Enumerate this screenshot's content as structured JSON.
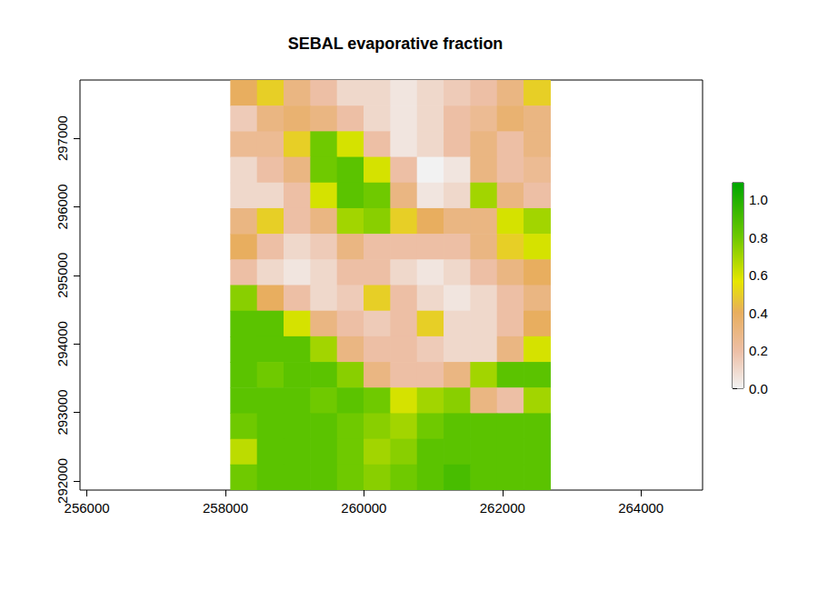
{
  "chart_data": {
    "type": "raster",
    "title": "SEBAL evaporative fraction",
    "xlim": [
      255900,
      264890
    ],
    "ylim": [
      291866,
      297850
    ],
    "xticks": [
      256000,
      258000,
      260000,
      262000,
      264000
    ],
    "yticks": [
      292000,
      293000,
      294000,
      295000,
      296000,
      297000
    ],
    "x_edges": [
      258070,
      258455,
      258840,
      259225,
      259610,
      259995,
      260380,
      260765,
      261150,
      261535,
      261920,
      262305,
      262690
    ],
    "y_edges": [
      297850,
      297476,
      297102,
      296728,
      296354,
      295980,
      295606,
      295232,
      294858,
      294484,
      294110,
      293736,
      293362,
      292988,
      292614,
      292240,
      291866
    ],
    "values": [
      [
        0.4,
        0.5,
        0.3,
        0.2,
        0.1,
        0.1,
        0.05,
        0.1,
        0.15,
        0.2,
        0.3,
        0.5
      ],
      [
        0.15,
        0.3,
        0.35,
        0.3,
        0.2,
        0.1,
        0.05,
        0.1,
        0.2,
        0.25,
        0.35,
        0.3
      ],
      [
        0.25,
        0.25,
        0.5,
        0.8,
        0.6,
        0.2,
        0.05,
        0.1,
        0.2,
        0.3,
        0.2,
        0.3
      ],
      [
        0.1,
        0.2,
        0.3,
        0.8,
        0.85,
        0.6,
        0.2,
        0.0,
        0.05,
        0.3,
        0.2,
        0.25
      ],
      [
        0.1,
        0.1,
        0.2,
        0.6,
        0.85,
        0.8,
        0.3,
        0.05,
        0.1,
        0.7,
        0.3,
        0.2
      ],
      [
        0.3,
        0.5,
        0.2,
        0.3,
        0.7,
        0.75,
        0.5,
        0.4,
        0.3,
        0.3,
        0.6,
        0.7
      ],
      [
        0.4,
        0.2,
        0.1,
        0.15,
        0.3,
        0.2,
        0.2,
        0.2,
        0.2,
        0.3,
        0.5,
        0.6
      ],
      [
        0.2,
        0.1,
        0.05,
        0.1,
        0.2,
        0.2,
        0.1,
        0.05,
        0.1,
        0.2,
        0.3,
        0.4
      ],
      [
        0.75,
        0.4,
        0.2,
        0.1,
        0.15,
        0.5,
        0.2,
        0.1,
        0.05,
        0.1,
        0.2,
        0.3
      ],
      [
        0.85,
        0.85,
        0.6,
        0.3,
        0.2,
        0.15,
        0.2,
        0.5,
        0.1,
        0.1,
        0.2,
        0.4
      ],
      [
        0.85,
        0.85,
        0.85,
        0.7,
        0.3,
        0.2,
        0.2,
        0.15,
        0.1,
        0.1,
        0.3,
        0.6
      ],
      [
        0.85,
        0.8,
        0.85,
        0.85,
        0.75,
        0.3,
        0.2,
        0.2,
        0.3,
        0.7,
        0.85,
        0.85
      ],
      [
        0.85,
        0.85,
        0.85,
        0.8,
        0.85,
        0.8,
        0.6,
        0.7,
        0.75,
        0.3,
        0.2,
        0.7
      ],
      [
        0.8,
        0.85,
        0.85,
        0.85,
        0.8,
        0.75,
        0.7,
        0.8,
        0.85,
        0.85,
        0.85,
        0.85
      ],
      [
        0.65,
        0.85,
        0.85,
        0.85,
        0.8,
        0.7,
        0.75,
        0.85,
        0.85,
        0.85,
        0.85,
        0.85
      ],
      [
        0.8,
        0.85,
        0.85,
        0.85,
        0.8,
        0.75,
        0.8,
        0.85,
        0.9,
        0.85,
        0.85,
        0.85
      ]
    ],
    "colorbar": {
      "lim": [
        0,
        1.09
      ],
      "ticks": [
        {
          "value": 0,
          "label": "0.0"
        },
        {
          "value": 0.2,
          "label": "0.2"
        },
        {
          "value": 0.4,
          "label": "0.4"
        },
        {
          "value": 0.6,
          "label": "0.6"
        },
        {
          "value": 0.8,
          "label": "0.8"
        },
        {
          "value": 1,
          "label": "1.0"
        }
      ]
    }
  }
}
